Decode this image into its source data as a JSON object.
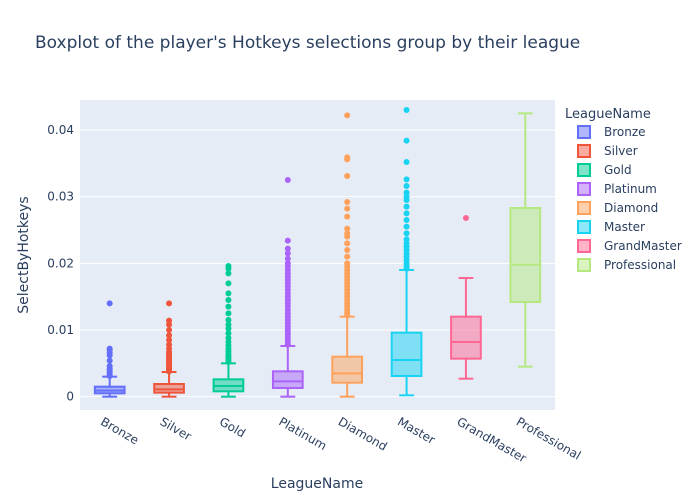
{
  "chart_data": {
    "type": "box",
    "title": "Boxplot of the player's Hotkeys selections group by their league",
    "xlabel": "LeagueName",
    "ylabel": "SelectByHotkeys",
    "ylim": [
      -0.002,
      0.0445
    ],
    "yticks": [
      0,
      0.01,
      0.02,
      0.03,
      0.04
    ],
    "ytick_labels": [
      "0",
      "0.01",
      "0.02",
      "0.03",
      "0.04"
    ],
    "grid": true,
    "legend_title": "LeagueName",
    "legend_placement": "right",
    "series": [
      {
        "name": "Bronze",
        "color": "#636efa",
        "min": 0.0,
        "q1": 0.0005,
        "median": 0.0009,
        "q3": 0.0015,
        "max": 0.003,
        "outliers": [
          0.0031,
          0.0033,
          0.0036,
          0.0039,
          0.0042,
          0.0046,
          0.0054,
          0.0062,
          0.0066,
          0.007,
          0.0072,
          0.014
        ]
      },
      {
        "name": "Silver",
        "color": "#ef553b",
        "min": 0.0,
        "q1": 0.0006,
        "median": 0.0011,
        "q3": 0.0019,
        "max": 0.0037,
        "outliers": [
          0.0038,
          0.004,
          0.0042,
          0.0044,
          0.0046,
          0.0048,
          0.005,
          0.0052,
          0.0054,
          0.0056,
          0.0058,
          0.006,
          0.0062,
          0.0064,
          0.0067,
          0.0072,
          0.0078,
          0.0085,
          0.0092,
          0.01,
          0.0108,
          0.0114,
          0.014
        ]
      },
      {
        "name": "Gold",
        "color": "#00cc96",
        "min": 0.0,
        "q1": 0.0008,
        "median": 0.0016,
        "q3": 0.0026,
        "max": 0.005,
        "outliers": [
          0.0052,
          0.0055,
          0.0058,
          0.0061,
          0.0064,
          0.0068,
          0.0072,
          0.0077,
          0.0082,
          0.0088,
          0.0095,
          0.0102,
          0.0108,
          0.0115,
          0.0125,
          0.0135,
          0.0145,
          0.0155,
          0.017,
          0.0185,
          0.0192,
          0.0196
        ]
      },
      {
        "name": "Platinum",
        "color": "#ab63fa",
        "min": 0.0,
        "q1": 0.0013,
        "median": 0.0023,
        "q3": 0.0038,
        "max": 0.0076,
        "outliers": [
          0.0078,
          0.0082,
          0.0086,
          0.009,
          0.0094,
          0.0098,
          0.0102,
          0.0106,
          0.011,
          0.0115,
          0.012,
          0.0125,
          0.013,
          0.0135,
          0.014,
          0.0145,
          0.015,
          0.0155,
          0.016,
          0.0165,
          0.017,
          0.0175,
          0.018,
          0.0185,
          0.019,
          0.0195,
          0.02,
          0.0207,
          0.0215,
          0.0222,
          0.0234,
          0.0325
        ]
      },
      {
        "name": "Diamond",
        "color": "#ffa15a",
        "min": 0.0,
        "q1": 0.0021,
        "median": 0.0035,
        "q3": 0.006,
        "max": 0.012,
        "outliers": [
          0.0122,
          0.0126,
          0.013,
          0.0135,
          0.014,
          0.0145,
          0.015,
          0.0155,
          0.016,
          0.0165,
          0.017,
          0.0175,
          0.018,
          0.0185,
          0.019,
          0.0195,
          0.02,
          0.021,
          0.022,
          0.023,
          0.024,
          0.0245,
          0.0252,
          0.027,
          0.0282,
          0.0292,
          0.0331,
          0.0356,
          0.0359,
          0.0422
        ]
      },
      {
        "name": "Master",
        "color": "#19d3f3",
        "min": 0.0002,
        "q1": 0.0031,
        "median": 0.0055,
        "q3": 0.0096,
        "max": 0.019,
        "outliers": [
          0.0192,
          0.0196,
          0.02,
          0.0205,
          0.021,
          0.0215,
          0.022,
          0.0225,
          0.023,
          0.0236,
          0.0245,
          0.0255,
          0.0265,
          0.0275,
          0.0285,
          0.0295,
          0.03,
          0.0306,
          0.0316,
          0.0326,
          0.0352,
          0.0384,
          0.043
        ]
      },
      {
        "name": "GrandMaster",
        "color": "#ff6692",
        "min": 0.0027,
        "q1": 0.0057,
        "median": 0.0082,
        "q3": 0.012,
        "max": 0.0178,
        "outliers": [
          0.0268
        ]
      },
      {
        "name": "Professional",
        "color": "#b6e880",
        "min": 0.0045,
        "q1": 0.0142,
        "median": 0.0198,
        "q3": 0.0283,
        "max": 0.0425,
        "outliers": []
      }
    ]
  }
}
